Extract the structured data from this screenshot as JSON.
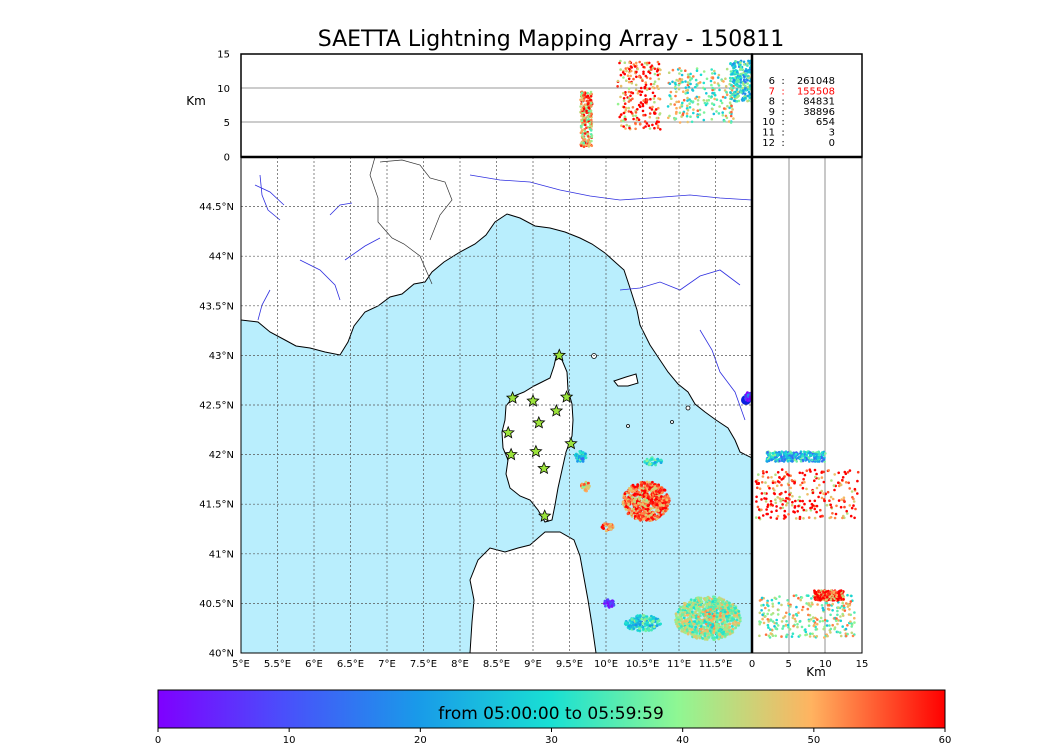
{
  "chart_data": {
    "type": "scatter",
    "title": "SAETTA Lightning Mapping Array - 150811",
    "colorbar": {
      "label": "from 05:00:00 to 05:59:59",
      "ticks": [
        "0",
        "10",
        "20",
        "30",
        "40",
        "50",
        "60"
      ],
      "range": [
        0,
        60
      ],
      "colormap": "rainbow"
    },
    "map": {
      "lon_range": [
        5.0,
        12.0
      ],
      "lat_range": [
        40.0,
        45.0
      ],
      "lon_ticks": [
        "5°E",
        "5.5°E",
        "6°E",
        "6.5°E",
        "7°E",
        "7.5°E",
        "8°E",
        "8.5°E",
        "9°E",
        "9.5°E",
        "10°E",
        "10.5°E",
        "11°E",
        "11.5°E"
      ],
      "lat_ticks": [
        "40°N",
        "40.5°N",
        "41°N",
        "41.5°N",
        "42°N",
        "42.5°N",
        "43°N",
        "43.5°N",
        "44°N",
        "44.5°N"
      ],
      "land_color": "#ffffff",
      "sea_color": "#b9eefd",
      "river_color": "#3030e0",
      "station_color": "#9be33b",
      "stations": [
        {
          "lon": 9.36,
          "lat": 43.0
        },
        {
          "lon": 8.72,
          "lat": 42.57
        },
        {
          "lon": 9.0,
          "lat": 42.54
        },
        {
          "lon": 9.46,
          "lat": 42.58
        },
        {
          "lon": 9.32,
          "lat": 42.44
        },
        {
          "lon": 9.08,
          "lat": 42.32
        },
        {
          "lon": 8.66,
          "lat": 42.22
        },
        {
          "lon": 9.52,
          "lat": 42.11
        },
        {
          "lon": 9.04,
          "lat": 42.03
        },
        {
          "lon": 8.7,
          "lat": 42.0
        },
        {
          "lon": 9.15,
          "lat": 41.86
        },
        {
          "lon": 9.16,
          "lat": 41.38
        }
      ],
      "clusters": [
        {
          "lon": 9.65,
          "lat": 41.98,
          "rx": 0.08,
          "ry": 0.06,
          "time": 25
        },
        {
          "lon": 9.72,
          "lat": 41.68,
          "rx": 0.06,
          "ry": 0.05,
          "time": 50
        },
        {
          "lon": 10.55,
          "lat": 41.53,
          "rx": 0.32,
          "ry": 0.2,
          "time": 55
        },
        {
          "lon": 10.65,
          "lat": 41.93,
          "rx": 0.12,
          "ry": 0.04,
          "time": 30
        },
        {
          "lon": 10.02,
          "lat": 41.27,
          "rx": 0.08,
          "ry": 0.04,
          "time": 54
        },
        {
          "lon": 11.4,
          "lat": 40.35,
          "rx": 0.45,
          "ry": 0.22,
          "time": 40
        },
        {
          "lon": 10.5,
          "lat": 40.3,
          "rx": 0.25,
          "ry": 0.08,
          "time": 30
        },
        {
          "lon": 10.05,
          "lat": 40.5,
          "rx": 0.08,
          "ry": 0.04,
          "time": 3
        },
        {
          "lon": 11.95,
          "lat": 42.58,
          "rx": 0.05,
          "ry": 0.05,
          "time": 5
        }
      ]
    },
    "altitude_panel": {
      "ylabel": "Km",
      "ylim": [
        0,
        15
      ],
      "yticks": [
        "0",
        "5",
        "10",
        "15"
      ],
      "clusters": [
        {
          "lon": 9.73,
          "alt": 5.5,
          "wlon": 0.08,
          "walt": 4.0,
          "time": 50
        },
        {
          "lon": 10.45,
          "alt": 9.0,
          "wlon": 0.3,
          "walt": 5.0,
          "time": 55
        },
        {
          "lon": 11.3,
          "alt": 9.0,
          "wlon": 0.45,
          "walt": 4.0,
          "time": 40
        },
        {
          "lon": 11.85,
          "alt": 11.0,
          "wlon": 0.15,
          "walt": 3.0,
          "time": 30
        }
      ]
    },
    "lat_alt_panel": {
      "xlabel": "Km",
      "xlim": [
        0,
        15
      ],
      "xticks": [
        "0",
        "5",
        "10",
        "15"
      ],
      "clusters": [
        {
          "lat": 41.98,
          "alt": 6.0,
          "wlat": 0.05,
          "walt": 4.0,
          "time": 25
        },
        {
          "lat": 41.6,
          "alt": 7.5,
          "wlat": 0.25,
          "walt": 7.0,
          "time": 57
        },
        {
          "lat": 40.37,
          "alt": 7.5,
          "wlat": 0.22,
          "walt": 6.5,
          "time": 40
        },
        {
          "lat": 40.58,
          "alt": 10.5,
          "wlat": 0.05,
          "walt": 2.0,
          "time": 58
        }
      ]
    },
    "station_counts": [
      {
        "n": "6",
        "sep": ":",
        "count": "261048",
        "color": "#000000"
      },
      {
        "n": "7",
        "sep": ":",
        "count": "155508",
        "color": "#ff0000"
      },
      {
        "n": "8",
        "sep": ":",
        "count": "84831",
        "color": "#000000"
      },
      {
        "n": "9",
        "sep": ":",
        "count": "38896",
        "color": "#000000"
      },
      {
        "n": "10",
        "sep": ":",
        "count": "654",
        "color": "#000000"
      },
      {
        "n": "11",
        "sep": ":",
        "count": "3",
        "color": "#000000"
      },
      {
        "n": "12",
        "sep": ":",
        "count": "0",
        "color": "#000000"
      }
    ]
  }
}
